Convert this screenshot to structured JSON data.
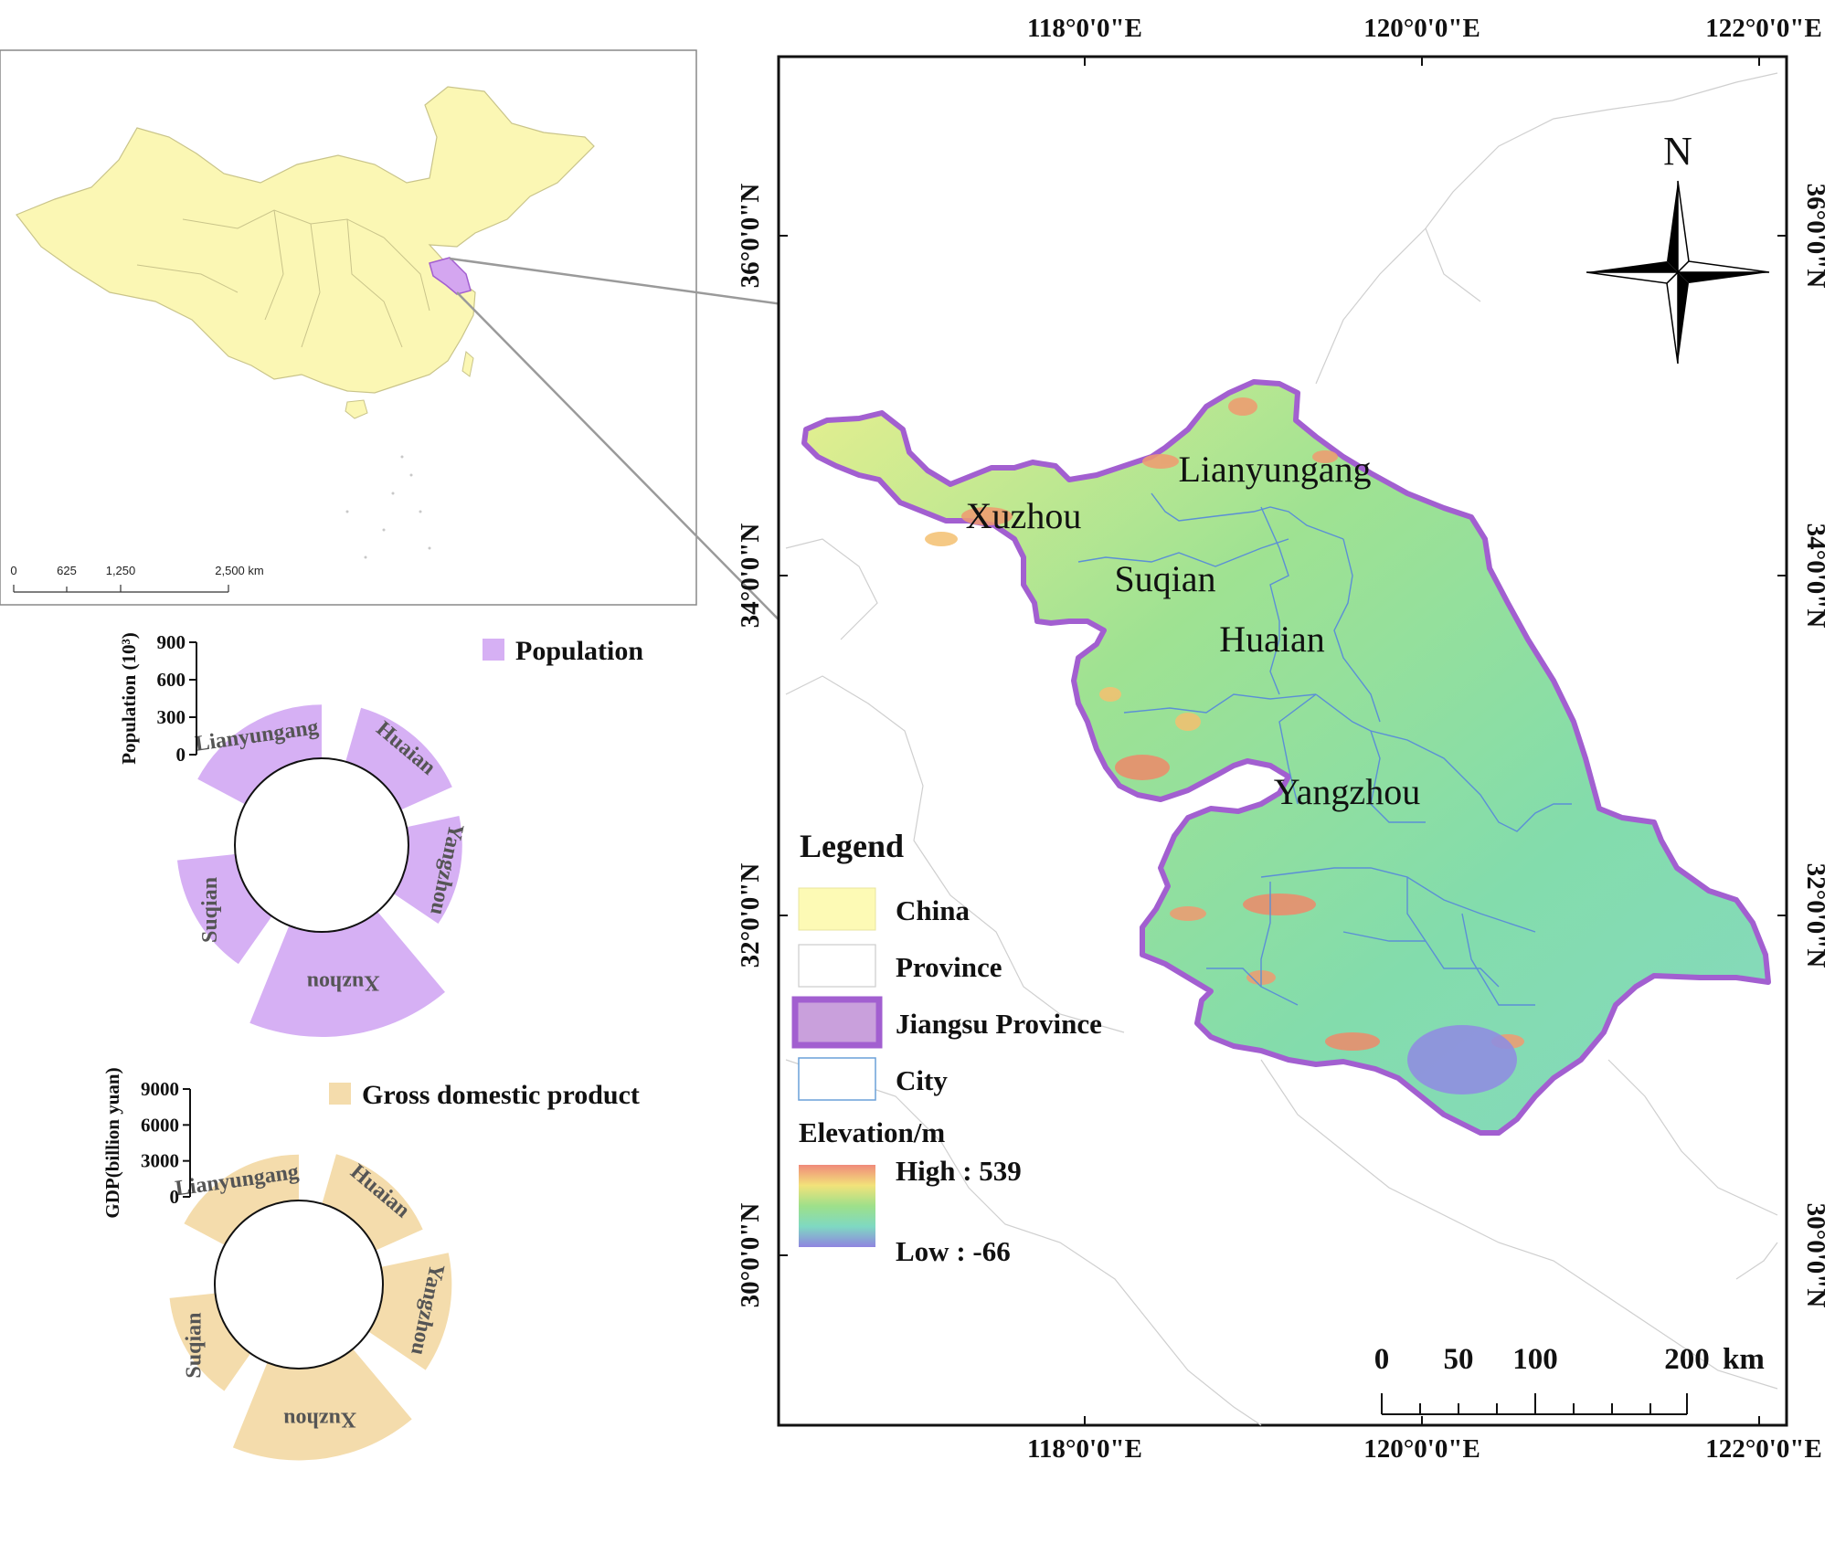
{
  "inset_map": {
    "scale_ticks": [
      "0",
      "625",
      "1,250",
      "2,500 km"
    ]
  },
  "main_map": {
    "lon_labels": [
      "118°0'0\"E",
      "120°0'0\"E",
      "122°0'0\"E"
    ],
    "lat_labels": [
      "36°0'0\"N",
      "34°0'0\"N",
      "32°0'0\"N",
      "30°0'0\"N"
    ],
    "north_label": "N",
    "city_labels": [
      "Lianyungang",
      "Xuzhou",
      "Suqian",
      "Huaian",
      "Yangzhou"
    ],
    "scale_ticks": [
      "0",
      "50",
      "100",
      "200"
    ],
    "scale_unit": "km"
  },
  "legend": {
    "title": "Legend",
    "items": [
      {
        "label": "China",
        "color": "#fdfab5"
      },
      {
        "label": "Province",
        "color": "#ffffff"
      },
      {
        "label": "Jiangsu Province",
        "color": "#c9a0dc"
      },
      {
        "label": "City",
        "color": "#ffffff"
      }
    ],
    "elevation_title": "Elevation/m",
    "elevation_high": "High : 539",
    "elevation_low": "Low : -66"
  },
  "colors": {
    "china_fill": "#fbf7b4",
    "jiangsu_outline": "#a25fd0",
    "population_fill": "#d6b0f4",
    "gdp_fill": "#f4dcac",
    "elevation_mid": "#7fdca0"
  },
  "chart_data": [
    {
      "type": "bar",
      "title": "",
      "legend": "Population",
      "ylabel": "Population (10³)",
      "yticks": [
        "900",
        "600",
        "300",
        "0"
      ],
      "ylim": [
        0,
        900
      ],
      "categories": [
        "Lianyungang",
        "Huaian",
        "Yangzhou",
        "Xuzhou",
        "Suqian"
      ],
      "values": [
        460,
        480,
        460,
        900,
        500
      ]
    },
    {
      "type": "bar",
      "title": "",
      "legend": "Gross domestic product",
      "ylabel": "GDP(billion yuan)",
      "yticks": [
        "9000",
        "6000",
        "3000",
        "0"
      ],
      "ylim": [
        0,
        9000
      ],
      "categories": [
        "Lianyungang",
        "Huaian",
        "Yangzhou",
        "Xuzhou",
        "Suqian"
      ],
      "values": [
        4000,
        4500,
        6000,
        8000,
        4000
      ]
    }
  ]
}
